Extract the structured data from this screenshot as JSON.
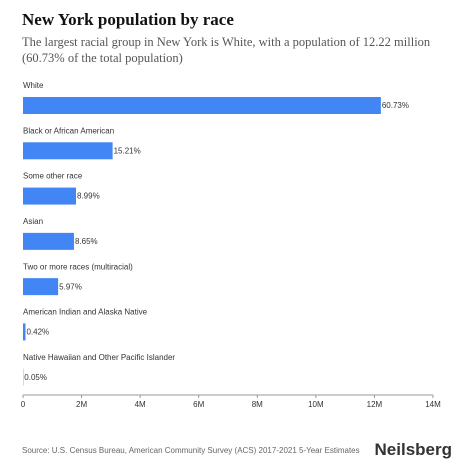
{
  "chart_data": {
    "type": "hbar",
    "title": "New York population by race",
    "subtitle": "The largest racial group in New York is White, with a population of 12.22 million (60.73% of the total population)",
    "categories": [
      "White",
      "Black or African American",
      "Some other race",
      "Asian",
      "Two or more races (multiracial)",
      "American Indian and Alaska Native",
      "Native Hawaiian and Other Pacific Islander"
    ],
    "values": [
      12220000,
      3060000,
      1810000,
      1740000,
      1200000,
      85000,
      10000
    ],
    "share_labels": [
      "60.73%",
      "15.21%",
      "8.99%",
      "8.65%",
      "5.97%",
      "0.42%",
      "0.05%"
    ],
    "color": "#4285f4",
    "xlim": [
      0,
      14000000
    ],
    "xticks": [
      0,
      {
        "value": 2000000,
        "label": "2M"
      },
      {
        "value": 4000000,
        "label": "4M"
      },
      {
        "value": 6000000,
        "label": "6M"
      },
      {
        "value": 8000000,
        "label": "8M"
      },
      {
        "value": 10000000,
        "label": "10M"
      },
      {
        "value": 12000000,
        "label": "12M"
      },
      {
        "value": 14000000,
        "label": "14M"
      }
    ],
    "grid": false,
    "source": "Source: U.S. Census Bureau, American Community Survey (ACS) 2017-2021 5-Year Estimates",
    "brand": "Neilsberg"
  }
}
